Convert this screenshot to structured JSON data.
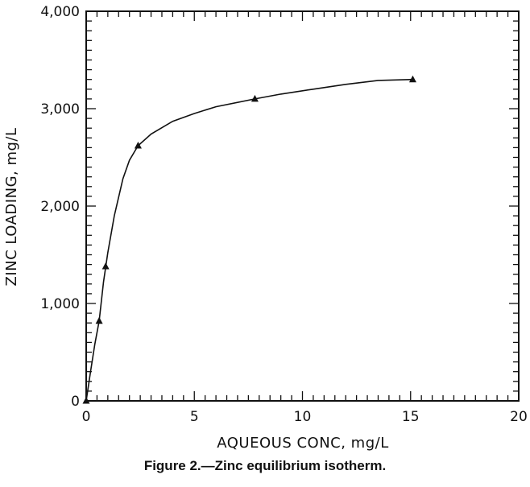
{
  "caption": "Figure 2.—Zinc equilibrium isotherm.",
  "chart_data": {
    "type": "line",
    "xlabel": "AQUEOUS CONC, mg/L",
    "ylabel": "ZINC LOADING, mg/L",
    "xlim": [
      0,
      20
    ],
    "ylim": [
      0,
      4000
    ],
    "x_ticks": [
      "0",
      "5",
      "10",
      "15",
      "20"
    ],
    "y_ticks": [
      "0",
      "1,000",
      "2,000",
      "3,000",
      "4,000"
    ],
    "x_tick_values": [
      0,
      5,
      10,
      15,
      20
    ],
    "y_tick_values": [
      0,
      1000,
      2000,
      3000,
      4000
    ],
    "grid": false,
    "marker": "triangle",
    "series": [
      {
        "x": [
          0.0,
          0.6,
          0.9,
          2.4,
          7.8,
          15.1
        ],
        "y": [
          0,
          820,
          1380,
          2620,
          3100,
          3300
        ]
      }
    ],
    "curve": {
      "x": [
        0.0,
        0.2,
        0.4,
        0.6,
        0.8,
        1.0,
        1.3,
        1.7,
        2.0,
        2.4,
        3.0,
        4.0,
        5.0,
        6.0,
        7.8,
        9.0,
        10.5,
        12.0,
        13.5,
        15.1
      ],
      "y": [
        0,
        300,
        580,
        820,
        1220,
        1520,
        1900,
        2280,
        2470,
        2620,
        2740,
        2870,
        2950,
        3020,
        3100,
        3150,
        3200,
        3250,
        3290,
        3300
      ]
    }
  }
}
